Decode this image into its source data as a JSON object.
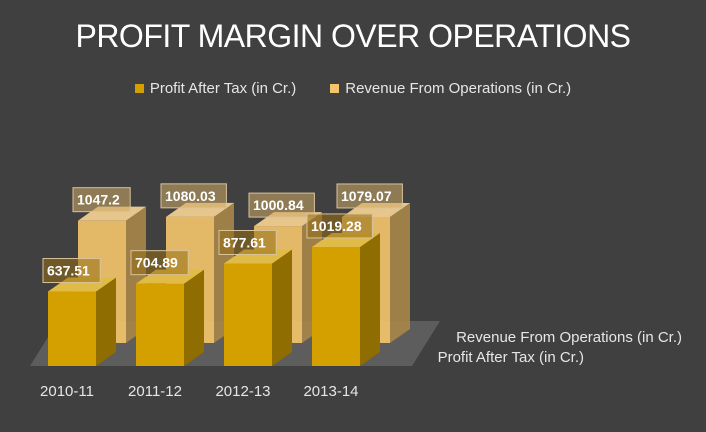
{
  "chart_data": {
    "type": "bar",
    "title": "PROFIT MARGIN OVER OPERATIONS",
    "categories": [
      "2010-11",
      "2011-12",
      "2012-13",
      "2013-14"
    ],
    "series": [
      {
        "name": "Profit After Tax (in Cr.)",
        "values": [
          637.51,
          704.89,
          877.61,
          1019.28
        ],
        "color": "#d4a000"
      },
      {
        "name": "Revenue From Operations (in Cr.)",
        "values": [
          1047.2,
          1080.03,
          1000.84,
          1079.07
        ],
        "color": "#f5c56a"
      }
    ],
    "legend": "top",
    "grid": false,
    "three_d": true
  }
}
